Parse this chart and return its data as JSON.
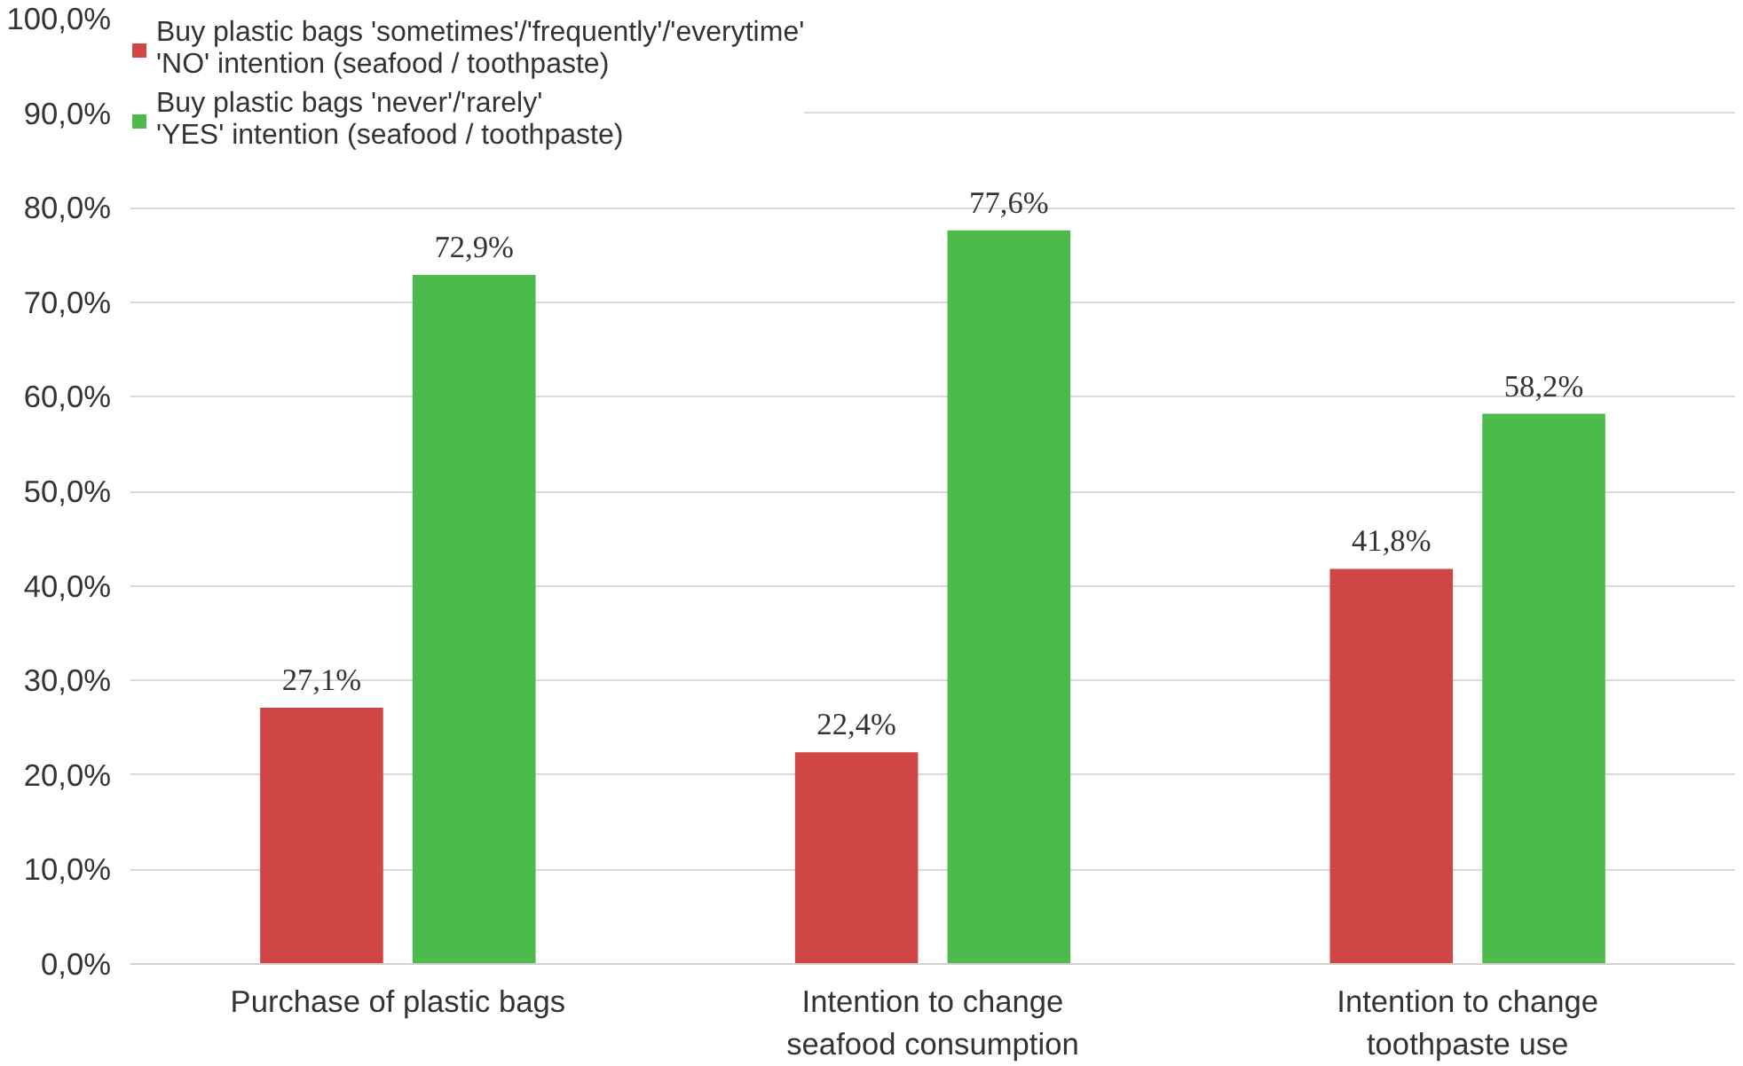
{
  "chart_data": {
    "type": "bar",
    "categories": [
      "Purchase of plastic bags",
      "Intention to change seafood consumption",
      "Intention to change toothpaste use"
    ],
    "series": [
      {
        "name": "Buy plastic bags 'sometimes'/'frequently'/'everytime'\n'NO' intention (seafood / toothpaste)",
        "color": "#d04545",
        "values": [
          27.1,
          22.4,
          41.8
        ],
        "value_labels": [
          "27,1%",
          "22,4%",
          "41,8%"
        ]
      },
      {
        "name": "Buy plastic bags 'never'/'rarely'\n'YES' intention (seafood / toothpaste)",
        "color": "#4cbb4c",
        "values": [
          72.9,
          77.6,
          58.2
        ],
        "value_labels": [
          "72,9%",
          "77,6%",
          "58,2%"
        ]
      }
    ],
    "ylim": [
      0,
      100
    ],
    "yticks": [
      {
        "value": 0,
        "label": "0,0%"
      },
      {
        "value": 10,
        "label": "10,0%"
      },
      {
        "value": 20,
        "label": "20,0%"
      },
      {
        "value": 30,
        "label": "30,0%"
      },
      {
        "value": 40,
        "label": "40,0%"
      },
      {
        "value": 50,
        "label": "50,0%"
      },
      {
        "value": 60,
        "label": "60,0%"
      },
      {
        "value": 70,
        "label": "70,0%"
      },
      {
        "value": 80,
        "label": "80,0%"
      },
      {
        "value": 90,
        "label": "90,0%"
      },
      {
        "value": 100,
        "label": "100,0%"
      }
    ],
    "grid": "y",
    "legend": "top left"
  }
}
